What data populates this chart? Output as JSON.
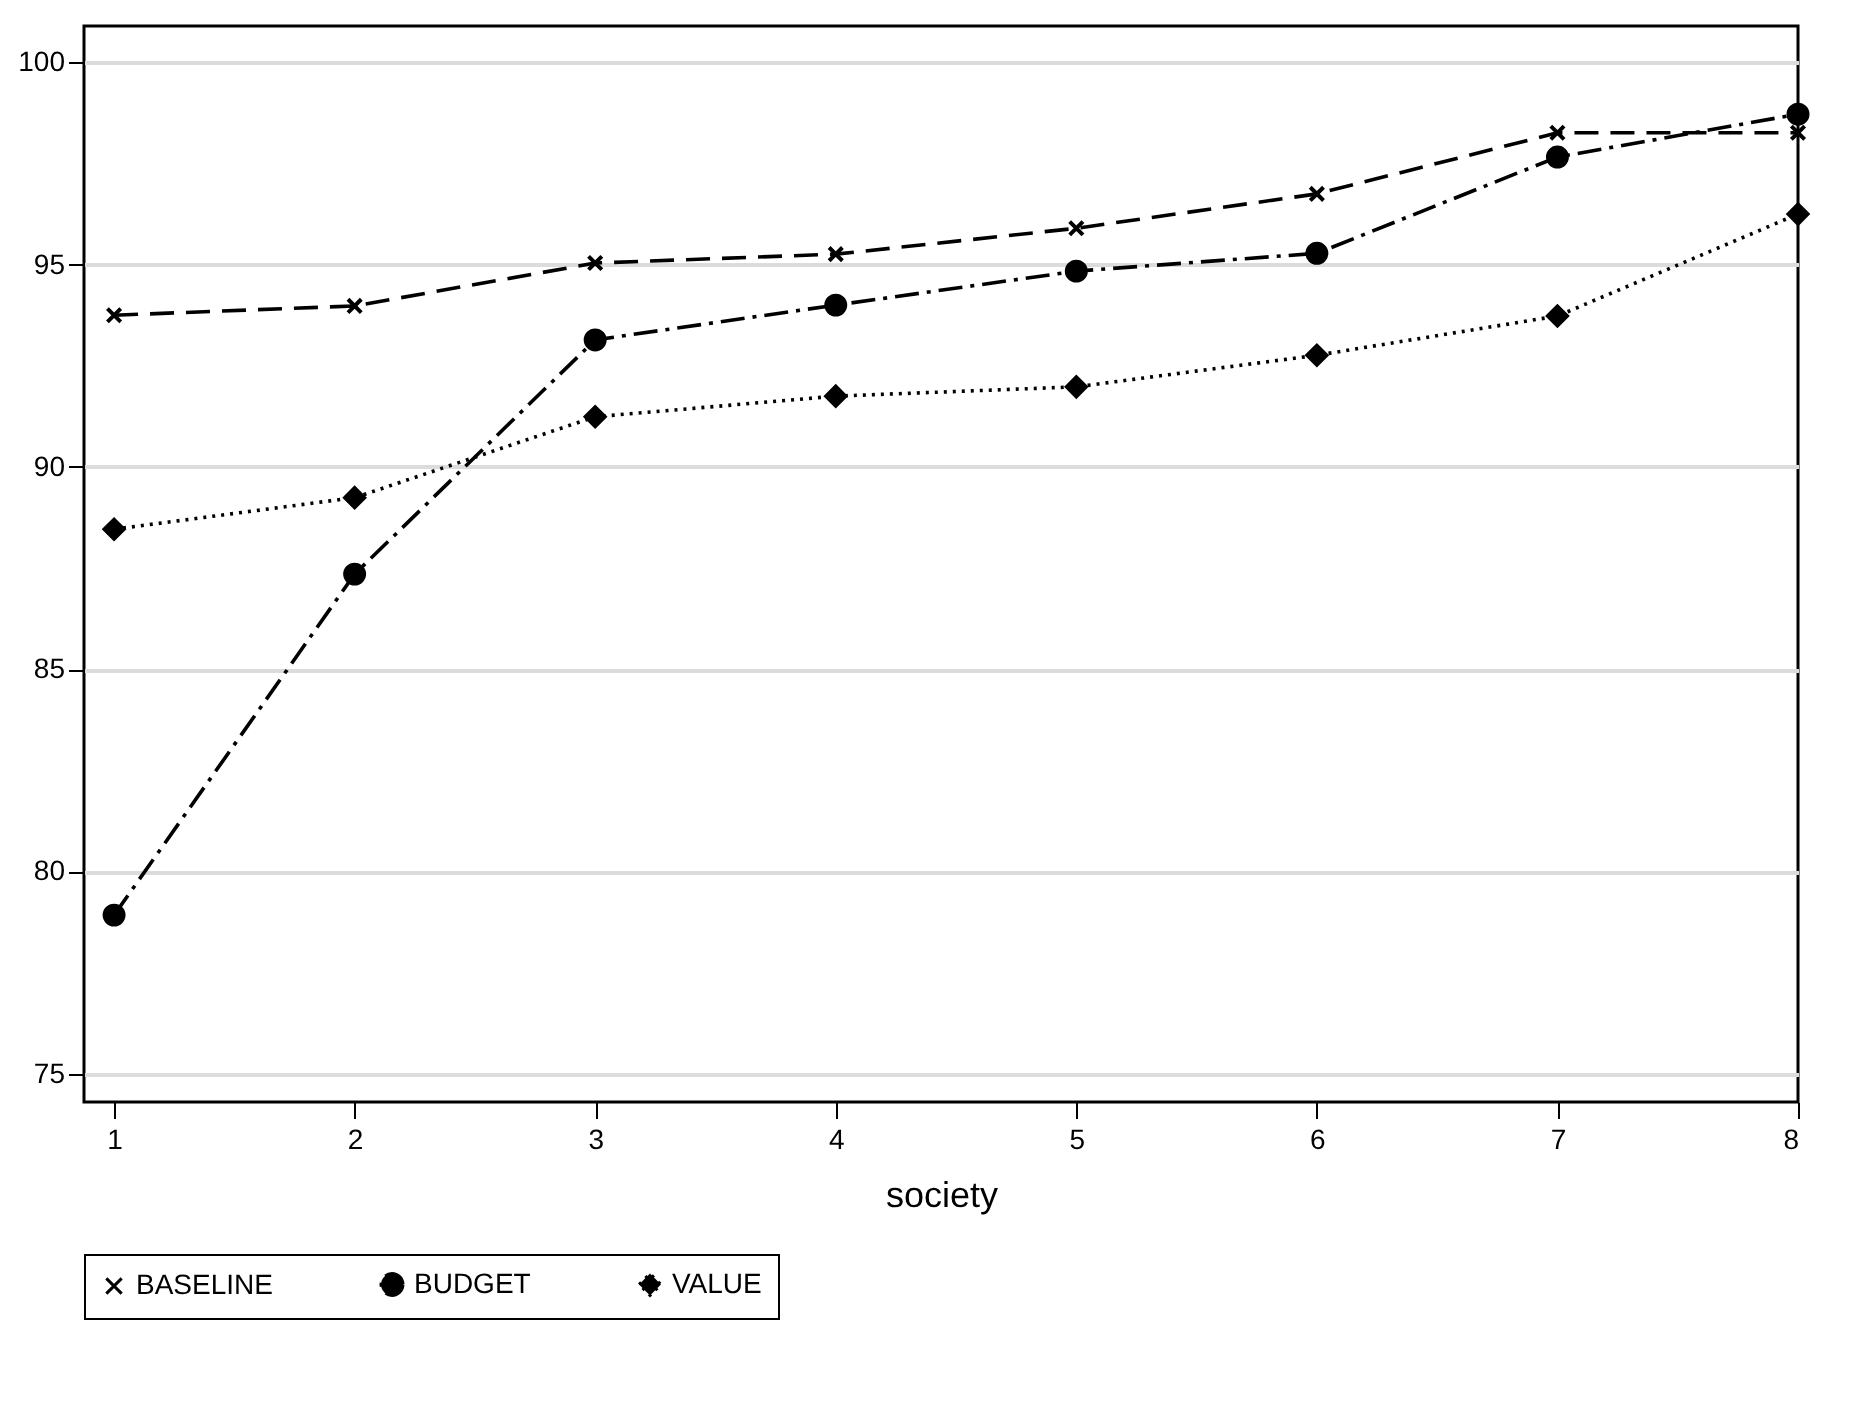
{
  "chart_data": {
    "type": "line",
    "xlabel": "society",
    "x": [
      1,
      2,
      3,
      4,
      5,
      6,
      7,
      8
    ],
    "xlim": [
      0.875,
      8
    ],
    "xticks": [
      1,
      2,
      3,
      4,
      5,
      6,
      7,
      8
    ],
    "ylim": [
      74.3,
      100.9
    ],
    "yticks": [
      75,
      80,
      85,
      90,
      95,
      100
    ],
    "grid": "y",
    "legend": "bottom",
    "series": [
      {
        "name": "BASELINE",
        "color": "#000000",
        "marker": "cross",
        "line_style": "dashed",
        "values": [
          93.75,
          93.98,
          95.04,
          95.26,
          95.9,
          96.75,
          98.26,
          98.26
        ]
      },
      {
        "name": "BUDGET",
        "color": "#000000",
        "marker": "circle",
        "line_style": "dashdot",
        "values": [
          78.92,
          87.35,
          93.14,
          94.0,
          94.84,
          95.28,
          97.66,
          98.72
        ]
      },
      {
        "name": "VALUE",
        "color": "#000000",
        "marker": "diamond",
        "line_style": "dotted",
        "values": [
          88.46,
          89.24,
          91.24,
          91.75,
          91.98,
          92.76,
          93.73,
          96.25
        ]
      }
    ]
  }
}
